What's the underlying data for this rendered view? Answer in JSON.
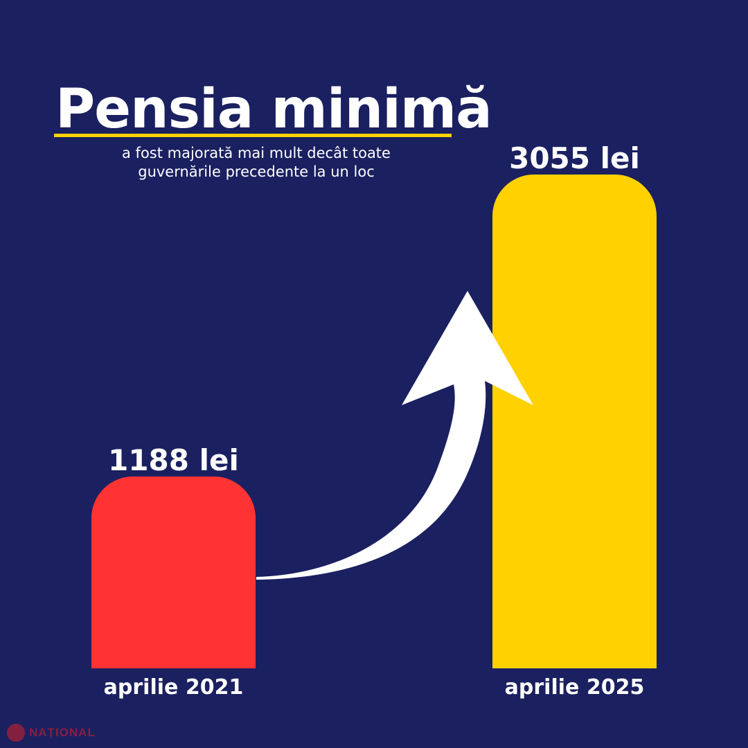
{
  "header": {
    "title": "Pensia minimă",
    "subtitle_line1": "a fost majorată mai mult decât toate",
    "subtitle_line2": "guvernările precedente la un loc"
  },
  "chart_data": {
    "type": "bar",
    "categories": [
      "aprilie 2021",
      "aprilie 2025"
    ],
    "values": [
      1188,
      3055
    ],
    "value_labels": [
      "1188 lei",
      "3055 lei"
    ],
    "unit": "lei",
    "colors": [
      "#ff3333",
      "#ffd100"
    ],
    "grid": false,
    "legend": "none"
  },
  "branding": {
    "name": "NAȚIONAL"
  }
}
